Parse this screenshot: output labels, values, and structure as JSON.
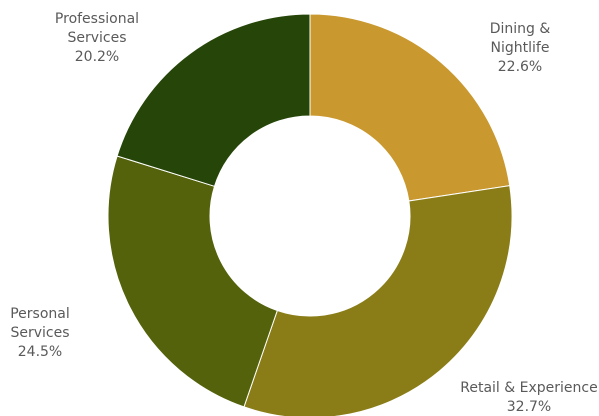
{
  "chart_data": {
    "type": "pie",
    "variant": "donut",
    "title": "",
    "slices": [
      {
        "label_lines": [
          "Dining &",
          "Nightlife"
        ],
        "value": 22.6,
        "value_label": "22.6%",
        "color": "#C9982E"
      },
      {
        "label_lines": [
          "Retail & Experience"
        ],
        "value": 32.7,
        "value_label": "32.7%",
        "color": "#8A7D17"
      },
      {
        "label_lines": [
          "Personal",
          "Services"
        ],
        "value": 24.5,
        "value_label": "24.5%",
        "color": "#53620B"
      },
      {
        "label_lines": [
          "Professional",
          "Services"
        ],
        "value": 20.2,
        "value_label": "20.2%",
        "color": "#254608"
      }
    ]
  }
}
